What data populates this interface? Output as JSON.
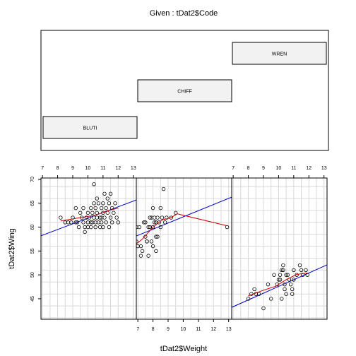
{
  "chart_data": {
    "type": "scatter",
    "title": "Given : tDat2$Code",
    "xlabel": "tDat2$Weight",
    "ylabel": "tDat2$Wing",
    "xlim": [
      6.9,
      13.2
    ],
    "ylim": [
      40.7,
      70.3
    ],
    "x_ticks": [
      7,
      8,
      9,
      10,
      11,
      12,
      13
    ],
    "y_ticks": [
      45,
      50,
      55,
      60,
      65,
      70
    ],
    "grid": true,
    "colors": {
      "regression": "#0000cc",
      "smooth": "#cc0000",
      "points": "#000000",
      "grid": "#d8d8d8",
      "shingle_fill": "#f2f2f2"
    },
    "given": {
      "levels": [
        "BLUTI",
        "CHIFF",
        "WREN"
      ]
    },
    "panels": [
      {
        "group": "BLUTI",
        "points": [
          [
            8.2,
            62
          ],
          [
            8.5,
            61
          ],
          [
            8.7,
            61
          ],
          [
            8.9,
            61
          ],
          [
            9,
            62
          ],
          [
            9.2,
            61
          ],
          [
            9.3,
            61
          ],
          [
            9.4,
            60
          ],
          [
            9.5,
            63
          ],
          [
            9.6,
            62
          ],
          [
            9.7,
            61
          ],
          [
            9.8,
            60
          ],
          [
            9.8,
            59
          ],
          [
            9.9,
            62
          ],
          [
            10,
            61
          ],
          [
            10,
            63
          ],
          [
            10,
            60
          ],
          [
            10.1,
            62
          ],
          [
            10.2,
            64
          ],
          [
            10.2,
            60
          ],
          [
            10.3,
            61
          ],
          [
            10.3,
            63
          ],
          [
            10.4,
            62
          ],
          [
            10.4,
            65
          ],
          [
            10.5,
            61
          ],
          [
            10.5,
            60
          ],
          [
            10.5,
            64
          ],
          [
            10.6,
            62
          ],
          [
            10.6,
            66
          ],
          [
            10.6,
            63
          ],
          [
            10.7,
            61
          ],
          [
            10.7,
            65
          ],
          [
            10.8,
            62
          ],
          [
            10.8,
            60
          ],
          [
            10.9,
            64
          ],
          [
            10.9,
            61
          ],
          [
            11,
            63
          ],
          [
            11,
            65
          ],
          [
            11,
            60
          ],
          [
            11.1,
            67
          ],
          [
            11.1,
            62
          ],
          [
            11.2,
            64
          ],
          [
            11.2,
            61
          ],
          [
            11.3,
            66
          ],
          [
            11.3,
            63
          ],
          [
            11.4,
            60
          ],
          [
            11.4,
            65
          ],
          [
            11.5,
            62
          ],
          [
            11.6,
            64
          ],
          [
            11.6,
            61
          ],
          [
            11.7,
            63
          ],
          [
            11.8,
            65
          ],
          [
            11.9,
            62
          ],
          [
            12,
            61
          ],
          [
            10.4,
            69
          ],
          [
            9.2,
            64
          ],
          [
            9.7,
            64
          ],
          [
            10.9,
            62
          ],
          [
            11.5,
            67
          ],
          [
            10.2,
            61
          ]
        ],
        "regression": [
          [
            6.9,
            58.2
          ],
          [
            13.2,
            65.7
          ]
        ],
        "smooth": [
          [
            8.2,
            61.3
          ],
          [
            9.5,
            62.0
          ],
          [
            10.5,
            62.5
          ],
          [
            11.5,
            63.6
          ],
          [
            12,
            64.0
          ]
        ]
      },
      {
        "group": "CHIFF",
        "points": [
          [
            6.5,
            56
          ],
          [
            6.7,
            54
          ],
          [
            6.9,
            57
          ],
          [
            7,
            56
          ],
          [
            7.1,
            60
          ],
          [
            7.2,
            56
          ],
          [
            7.3,
            55
          ],
          [
            7.4,
            61
          ],
          [
            7.5,
            58
          ],
          [
            7.5,
            61
          ],
          [
            7.6,
            57
          ],
          [
            7.7,
            60
          ],
          [
            7.7,
            54
          ],
          [
            7.8,
            60
          ],
          [
            7.8,
            62
          ],
          [
            7.9,
            62
          ],
          [
            7.9,
            57
          ],
          [
            8,
            60
          ],
          [
            8,
            64
          ],
          [
            8,
            56
          ],
          [
            8.1,
            61
          ],
          [
            8.1,
            62
          ],
          [
            8.2,
            58
          ],
          [
            8.2,
            61
          ],
          [
            8.3,
            62
          ],
          [
            8.3,
            58
          ],
          [
            8.4,
            61
          ],
          [
            8.5,
            60
          ],
          [
            8.5,
            64
          ],
          [
            8.6,
            62
          ],
          [
            8.7,
            68
          ],
          [
            8.9,
            62
          ],
          [
            9.2,
            62
          ],
          [
            9.5,
            63
          ],
          [
            12.9,
            60
          ],
          [
            8.2,
            55
          ],
          [
            7.2,
            54
          ],
          [
            6.9,
            60
          ],
          [
            8.8,
            61
          ],
          [
            7.6,
            57
          ]
        ],
        "regression": [
          [
            6.4,
            57.5
          ],
          [
            13.2,
            66.3
          ]
        ],
        "smooth": [
          [
            6.5,
            55.5
          ],
          [
            7.3,
            57.5
          ],
          [
            8.0,
            60.0
          ],
          [
            8.6,
            61.5
          ],
          [
            9.2,
            62.0
          ],
          [
            9.6,
            62.8
          ],
          [
            12.9,
            60.3
          ]
        ]
      },
      {
        "group": "WREN",
        "points": [
          [
            8,
            45
          ],
          [
            8.2,
            46
          ],
          [
            8.4,
            47
          ],
          [
            8.5,
            46
          ],
          [
            8.7,
            46
          ],
          [
            9,
            43
          ],
          [
            9.3,
            48
          ],
          [
            9.5,
            45
          ],
          [
            9.7,
            50
          ],
          [
            9.9,
            48
          ],
          [
            10,
            49
          ],
          [
            10.1,
            49
          ],
          [
            10.2,
            51
          ],
          [
            10.2,
            45
          ],
          [
            10.3,
            52
          ],
          [
            10.4,
            48
          ],
          [
            10.4,
            47
          ],
          [
            10.5,
            50
          ],
          [
            10.5,
            46
          ],
          [
            10.6,
            50
          ],
          [
            10.7,
            49
          ],
          [
            10.8,
            48
          ],
          [
            10.9,
            46
          ],
          [
            11,
            51
          ],
          [
            11,
            49
          ],
          [
            11.2,
            50
          ],
          [
            11.4,
            52
          ],
          [
            11.5,
            51
          ],
          [
            11.6,
            50
          ],
          [
            11.9,
            50
          ],
          [
            11.8,
            51
          ],
          [
            10.9,
            47
          ],
          [
            10.1,
            50
          ],
          [
            10.3,
            51
          ]
        ],
        "regression": [
          [
            6.9,
            43.2
          ],
          [
            13.2,
            52.1
          ]
        ],
        "smooth": [
          [
            8.0,
            45.6
          ],
          [
            9.0,
            46.8
          ],
          [
            9.8,
            47.6
          ],
          [
            10.5,
            49.0
          ],
          [
            11.2,
            50.1
          ],
          [
            11.9,
            50.4
          ]
        ]
      }
    ]
  }
}
